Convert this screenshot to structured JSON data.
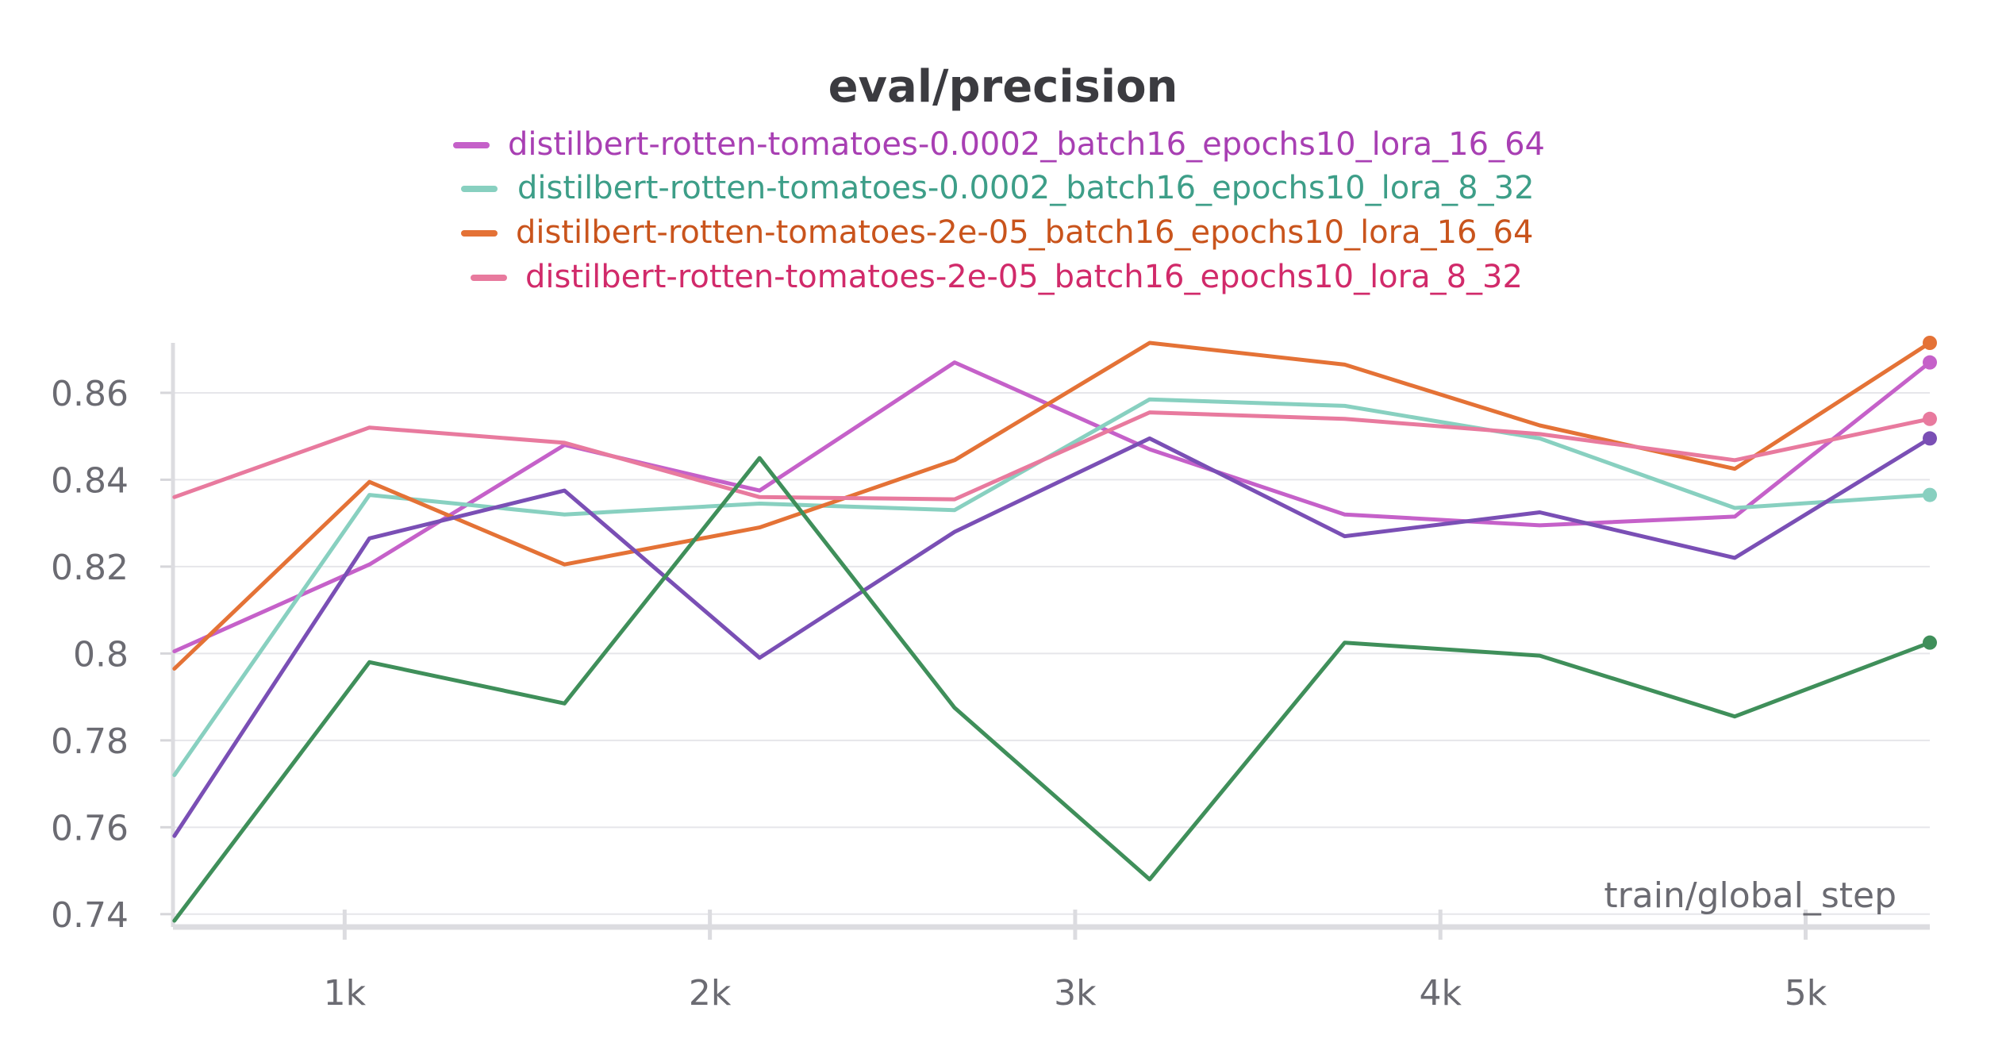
{
  "chart_data": {
    "type": "line",
    "title": "eval/precision",
    "xlabel": "train/global_step",
    "ylabel": "",
    "xlim": [
      530,
      5340
    ],
    "ylim": [
      0.7385,
      0.8715
    ],
    "x_ticks": [
      {
        "value": 1000,
        "label": "1k"
      },
      {
        "value": 2000,
        "label": "2k"
      },
      {
        "value": 3000,
        "label": "3k"
      },
      {
        "value": 4000,
        "label": "4k"
      },
      {
        "value": 5000,
        "label": "5k"
      }
    ],
    "y_ticks": [
      {
        "value": 0.74,
        "label": "0.74"
      },
      {
        "value": 0.76,
        "label": "0.76"
      },
      {
        "value": 0.78,
        "label": "0.78"
      },
      {
        "value": 0.8,
        "label": "0.8"
      },
      {
        "value": 0.82,
        "label": "0.82"
      },
      {
        "value": 0.84,
        "label": "0.84"
      },
      {
        "value": 0.86,
        "label": "0.86"
      }
    ],
    "grid": true,
    "legend_position": "top-center",
    "x": [
      534,
      1068,
      1602,
      2136,
      2670,
      3204,
      3738,
      4272,
      4806,
      5340
    ],
    "series": [
      {
        "name": "distilbert-rotten-tomatoes-0.0002_batch16_epochs10_lora_16_64",
        "color": "#c561c9",
        "legend_text_color": "#a83fb3",
        "in_legend": true,
        "values": [
          0.8005,
          0.8205,
          0.848,
          0.8375,
          0.867,
          0.847,
          0.832,
          0.8295,
          0.8315,
          0.867
        ]
      },
      {
        "name": "distilbert-rotten-tomatoes-0.0002_batch16_epochs10_lora_8_32",
        "color": "#88d0c0",
        "legend_text_color": "#3d9e88",
        "in_legend": true,
        "values": [
          0.772,
          0.8365,
          0.832,
          0.8345,
          0.833,
          0.8585,
          0.857,
          0.8495,
          0.8335,
          0.8365
        ]
      },
      {
        "name": "distilbert-rotten-tomatoes-2e-05_batch16_epochs10_lora_16_64",
        "color": "#e47236",
        "legend_text_color": "#c9541c",
        "in_legend": true,
        "values": [
          0.7965,
          0.8395,
          0.8205,
          0.829,
          0.8445,
          0.8715,
          0.8665,
          0.8525,
          0.8425,
          0.8715
        ]
      },
      {
        "name": "distilbert-rotten-tomatoes-2e-05_batch16_epochs10_lora_8_32",
        "color": "#e87a9e",
        "legend_text_color": "#d12a6a",
        "in_legend": true,
        "values": [
          0.836,
          0.852,
          0.8485,
          0.836,
          0.8355,
          0.8555,
          0.854,
          0.8505,
          0.8445,
          0.854
        ]
      },
      {
        "name": "",
        "color": "#7a4fb5",
        "in_legend": false,
        "values": [
          0.758,
          0.8265,
          0.8375,
          0.799,
          0.828,
          0.8495,
          0.827,
          0.8325,
          0.822,
          0.8495
        ]
      },
      {
        "name": "",
        "color": "#3f8f5a",
        "in_legend": false,
        "values": [
          0.7385,
          0.798,
          0.7885,
          0.845,
          0.7875,
          0.748,
          0.8025,
          0.7995,
          0.7855,
          0.8025
        ]
      }
    ]
  }
}
